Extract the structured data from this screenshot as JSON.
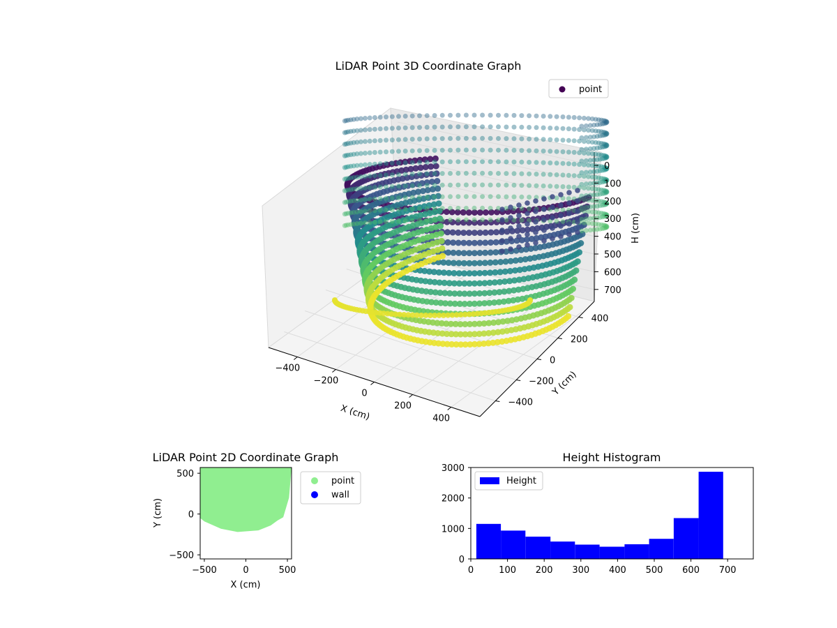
{
  "figure": {
    "colors": {
      "scatter2d": "#90ee90",
      "wall": "#0000ff",
      "hist": "#0000ff"
    }
  },
  "chart_data": [
    {
      "type": "scatter",
      "title": "LiDAR Point 3D Coordinate Graph",
      "xlabel": "X (cm)",
      "ylabel": "Y (cm)",
      "zlabel": "H (cm)",
      "legend": [
        "point"
      ],
      "legend_placement": "top-right",
      "x_ticks": [
        "−400",
        "−200",
        "0",
        "200",
        "400"
      ],
      "y_ticks": [
        "−400",
        "−200",
        "0",
        "200",
        "400"
      ],
      "z_ticks": [
        "0",
        "100",
        "200",
        "300",
        "400",
        "500",
        "600",
        "700"
      ],
      "z_inverted": true,
      "colormap": "viridis",
      "grid": true
    },
    {
      "type": "scatter",
      "title": "LiDAR Point 2D Coordinate Graph",
      "xlabel": "X (cm)",
      "ylabel": "Y (cm)",
      "xlim": [
        -550,
        550
      ],
      "ylim": [
        -550,
        570
      ],
      "x_ticks": [
        "−500",
        "0",
        "500"
      ],
      "y_ticks": [
        "−500",
        "0",
        "500"
      ],
      "legend": [
        "point",
        "wall"
      ],
      "legend_placement": "outside-right"
    },
    {
      "type": "bar",
      "title": "Height Histogram",
      "legend": [
        "Height"
      ],
      "legend_placement": "upper-left",
      "xlim": [
        0,
        770
      ],
      "ylim": [
        0,
        3000
      ],
      "x_ticks": [
        "0",
        "100",
        "200",
        "300",
        "400",
        "500",
        "600",
        "700"
      ],
      "y_ticks": [
        "0",
        "1000",
        "2000",
        "3000"
      ],
      "bins": [
        {
          "start": 15,
          "end": 82,
          "count": 1150
        },
        {
          "start": 82,
          "end": 149,
          "count": 930
        },
        {
          "start": 149,
          "end": 217,
          "count": 730
        },
        {
          "start": 217,
          "end": 284,
          "count": 570
        },
        {
          "start": 284,
          "end": 351,
          "count": 470
        },
        {
          "start": 351,
          "end": 419,
          "count": 400
        },
        {
          "start": 419,
          "end": 486,
          "count": 480
        },
        {
          "start": 486,
          "end": 553,
          "count": 660
        },
        {
          "start": 553,
          "end": 621,
          "count": 1340
        },
        {
          "start": 621,
          "end": 688,
          "count": 2860
        }
      ]
    }
  ]
}
